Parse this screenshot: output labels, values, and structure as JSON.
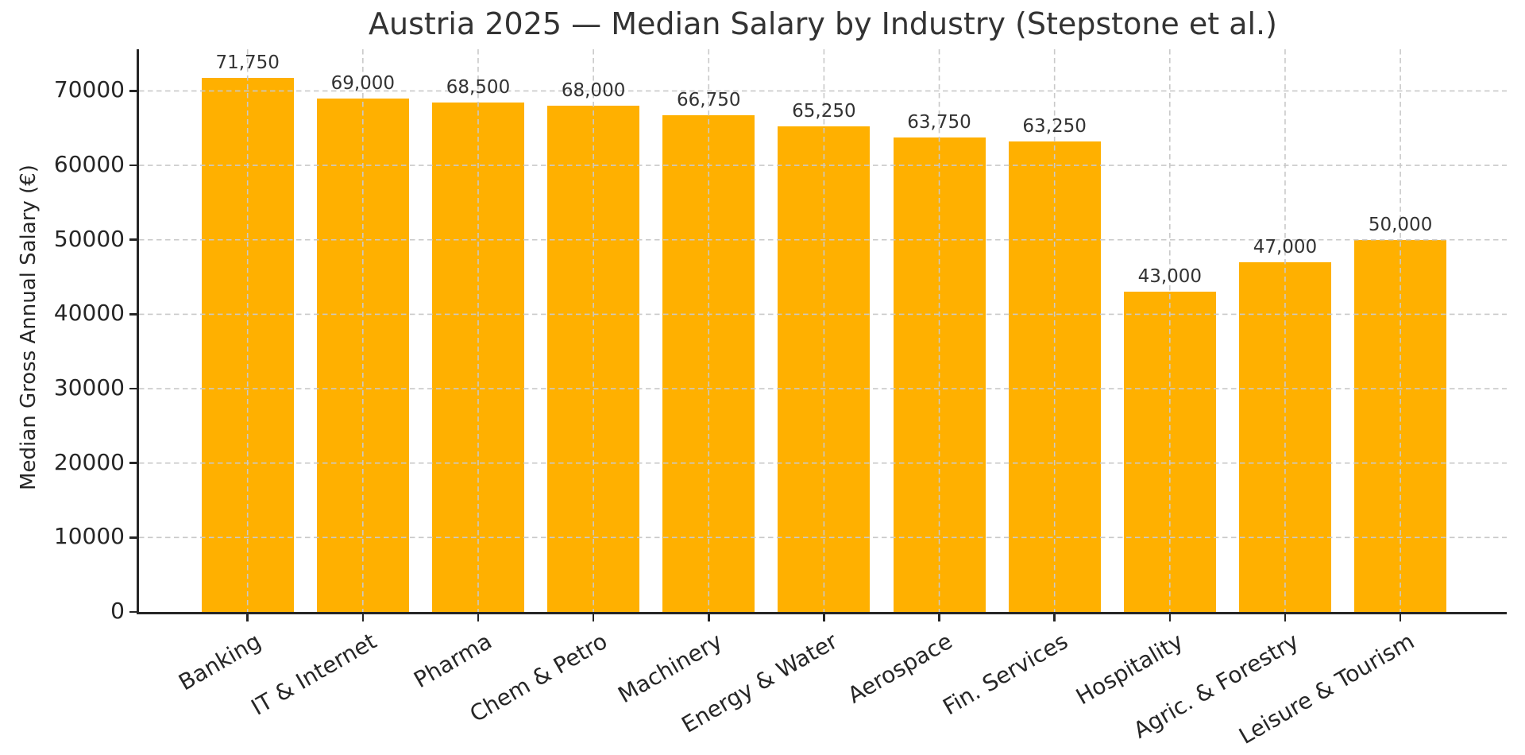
{
  "chart_data": {
    "type": "bar",
    "title": "Austria 2025 — Median Salary by Industry (Stepstone et al.)",
    "xlabel": "",
    "ylabel": "Median Gross Annual Salary (€)",
    "categories": [
      "Banking",
      "IT & Internet",
      "Pharma",
      "Chem & Petro",
      "Machinery",
      "Energy & Water",
      "Aerospace",
      "Fin. Services",
      "Hospitality",
      "Agric. & Forestry",
      "Leisure & Tourism"
    ],
    "values": [
      71750,
      69000,
      68500,
      68000,
      66750,
      65250,
      63750,
      63250,
      43000,
      47000,
      50000
    ],
    "value_labels": [
      "71,750",
      "69,000",
      "68,500",
      "68,000",
      "66,750",
      "65,250",
      "63,750",
      "63,250",
      "43,000",
      "47,000",
      "50,000"
    ],
    "yticks": [
      0,
      10000,
      20000,
      30000,
      40000,
      50000,
      60000,
      70000
    ],
    "ylim": [
      0,
      75600
    ],
    "bar_color": "#FFB000",
    "grid": "dashed",
    "grid_color": "#c9c9c9",
    "axis_color": "#262626",
    "text_color": "#333333",
    "legend": "none",
    "x_tick_rotation_deg": 30
  }
}
